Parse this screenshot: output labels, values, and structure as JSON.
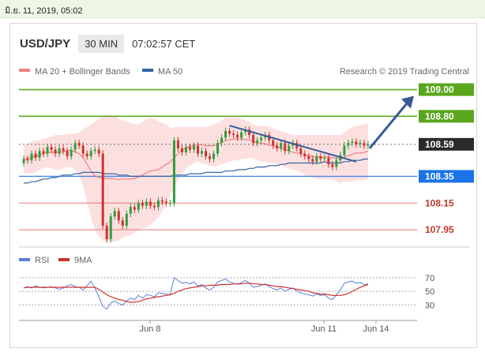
{
  "topbar": {
    "datetime": "มิ.ย. 11, 2019, 05:02"
  },
  "header": {
    "pair": "USD/JPY",
    "timeframe": "30 MIN",
    "time": "07:02:57 CET"
  },
  "legend": {
    "ma20": "MA 20 + Bollinger Bands",
    "ma50": "MA 50",
    "credit": "Research © 2019 Trading Central"
  },
  "colors": {
    "bull": "#2e9e3e",
    "bear": "#d0312d",
    "ma20": "#f08080",
    "ma50": "#3465a4",
    "band": "#fbd0d0",
    "target": "#5aa71e",
    "support": "#4a86e8",
    "levelred": "#e57373",
    "trend": "#3a5a96",
    "rsi": "#5b7fd8",
    "ma9": "#d0312d"
  },
  "chart_data": {
    "type": "candlestick",
    "ylim": [
      107.85,
      109.08
    ],
    "xticks": [
      "Jun 8",
      "Jun 11",
      "Jun 14"
    ],
    "closes": [
      108.48,
      108.47,
      108.52,
      108.49,
      108.54,
      108.52,
      108.57,
      108.55,
      108.52,
      108.56,
      108.54,
      108.5,
      108.55,
      108.6,
      108.58,
      108.52,
      108.5,
      108.54,
      108.55,
      108.52,
      107.98,
      107.88,
      108.05,
      108.09,
      108.02,
      107.98,
      108.07,
      108.12,
      108.1,
      108.15,
      108.13,
      108.16,
      108.13,
      108.12,
      108.17,
      108.16,
      108.15,
      108.15,
      108.62,
      108.56,
      108.53,
      108.57,
      108.55,
      108.58,
      108.52,
      108.54,
      108.5,
      108.48,
      108.52,
      108.6,
      108.64,
      108.69,
      108.67,
      108.66,
      108.64,
      108.68,
      108.7,
      108.66,
      108.6,
      108.62,
      108.64,
      108.66,
      108.62,
      108.58,
      108.56,
      108.6,
      108.54,
      108.58,
      108.6,
      108.56,
      108.52,
      108.5,
      108.48,
      108.46,
      108.5,
      108.48,
      108.49,
      108.44,
      108.42,
      108.47,
      108.51,
      108.58,
      108.6,
      108.61,
      108.59,
      108.6,
      108.58,
      108.59
    ],
    "bollinger_upper": [
      108.58,
      108.6,
      108.61,
      108.62,
      108.62,
      108.63,
      108.64,
      108.65,
      108.66,
      108.66,
      108.66,
      108.67,
      108.67,
      108.67,
      108.68,
      108.7,
      108.72,
      108.74,
      108.76,
      108.78,
      108.8,
      108.81,
      108.81,
      108.8,
      108.78,
      108.77,
      108.76,
      108.75,
      108.74,
      108.74,
      108.76,
      108.78,
      108.79,
      108.78,
      108.76,
      108.75,
      108.74,
      108.71,
      108.72,
      108.72,
      108.72,
      108.72,
      108.72,
      108.72,
      108.72,
      108.72,
      108.72,
      108.73,
      108.74,
      108.75,
      108.77,
      108.79,
      108.79,
      108.79,
      108.79,
      108.78,
      108.77,
      108.76,
      108.74,
      108.73,
      108.73,
      108.73,
      108.72,
      108.71,
      108.7,
      108.69,
      108.68,
      108.67,
      108.66,
      108.66,
      108.66,
      108.66,
      108.66,
      108.66,
      108.66,
      108.66,
      108.66,
      108.66,
      108.66,
      108.66,
      108.66,
      108.68,
      108.7,
      108.72,
      108.73,
      108.73,
      108.74,
      108.75
    ],
    "bollinger_lower": [
      108.38,
      108.37,
      108.37,
      108.38,
      108.4,
      108.41,
      108.42,
      108.41,
      108.4,
      108.4,
      108.41,
      108.42,
      108.42,
      108.4,
      108.36,
      108.28,
      108.16,
      108.04,
      107.95,
      107.9,
      107.87,
      107.86,
      107.86,
      107.86,
      107.87,
      107.89,
      107.9,
      107.91,
      107.93,
      107.95,
      107.96,
      107.97,
      107.99,
      108.01,
      108.04,
      108.09,
      108.14,
      108.2,
      108.26,
      108.32,
      108.37,
      108.41,
      108.43,
      108.45,
      108.46,
      108.45,
      108.44,
      108.43,
      108.42,
      108.43,
      108.44,
      108.45,
      108.46,
      108.47,
      108.47,
      108.48,
      108.48,
      108.49,
      108.48,
      108.47,
      108.46,
      108.46,
      108.45,
      108.45,
      108.44,
      108.43,
      108.42,
      108.41,
      108.4,
      108.39,
      108.38,
      108.36,
      108.35,
      108.34,
      108.33,
      108.33,
      108.33,
      108.33,
      108.32,
      108.31,
      108.3,
      108.31,
      108.31,
      108.31,
      108.32,
      108.32,
      108.32,
      108.33
    ],
    "ma50": [
      108.3,
      108.3,
      108.31,
      108.31,
      108.32,
      108.33,
      108.33,
      108.34,
      108.34,
      108.35,
      108.36,
      108.36,
      108.36,
      108.37,
      108.37,
      108.38,
      108.38,
      108.38,
      108.38,
      108.38,
      108.37,
      108.37,
      108.37,
      108.37,
      108.36,
      108.36,
      108.36,
      108.35,
      108.35,
      108.35,
      108.35,
      108.35,
      108.35,
      108.35,
      108.35,
      108.35,
      108.35,
      108.35,
      108.36,
      108.36,
      108.36,
      108.36,
      108.37,
      108.37,
      108.37,
      108.37,
      108.38,
      108.38,
      108.38,
      108.38,
      108.38,
      108.39,
      108.39,
      108.39,
      108.4,
      108.4,
      108.4,
      108.41,
      108.41,
      108.42,
      108.42,
      108.42,
      108.43,
      108.43,
      108.43,
      108.44,
      108.44,
      108.45,
      108.45,
      108.45,
      108.45,
      108.45,
      108.45,
      108.45,
      108.45,
      108.45,
      108.46,
      108.45,
      108.45,
      108.45,
      108.45,
      108.46,
      108.46,
      108.47,
      108.47,
      108.47,
      108.48,
      108.48
    ],
    "levels": [
      {
        "label": "109.00",
        "value": 109.0,
        "style": "target"
      },
      {
        "label": "108.80",
        "value": 108.8,
        "style": "target"
      },
      {
        "label": "108.59",
        "value": 108.59,
        "style": "current"
      },
      {
        "label": "108.35",
        "value": 108.35,
        "style": "support"
      },
      {
        "label": "108.15",
        "value": 108.15,
        "style": "plain"
      },
      {
        "label": "107.95",
        "value": 107.95,
        "style": "plain"
      }
    ],
    "rsi": {
      "ylim": [
        20,
        78
      ],
      "ticks": [
        "70",
        "50",
        "30"
      ],
      "legend": [
        "RSI",
        "9MA"
      ],
      "rsi_values": [
        55,
        57,
        55,
        58,
        56,
        55,
        56,
        57,
        55,
        53,
        55,
        58,
        60,
        57,
        56,
        52,
        58,
        65,
        55,
        42,
        28,
        24,
        33,
        36,
        32,
        30,
        36,
        40,
        38,
        44,
        40,
        45,
        44,
        42,
        48,
        47,
        46,
        45,
        70,
        66,
        62,
        63,
        61,
        64,
        58,
        60,
        55,
        52,
        56,
        64,
        66,
        68,
        64,
        62,
        60,
        63,
        66,
        62,
        56,
        57,
        59,
        61,
        57,
        54,
        52,
        55,
        50,
        53,
        55,
        50,
        48,
        46,
        45,
        43,
        46,
        44,
        45,
        40,
        38,
        45,
        52,
        62,
        64,
        65,
        62,
        63,
        60,
        61
      ],
      "ma9_values": [
        55,
        56,
        56,
        56,
        56,
        56,
        56,
        56,
        56,
        56,
        56,
        56,
        56,
        56,
        56,
        56,
        56,
        56,
        56,
        53,
        49,
        45,
        42,
        40,
        38,
        37,
        35,
        34,
        34,
        35,
        37,
        39,
        40,
        41,
        42,
        43,
        44,
        45,
        47,
        50,
        52,
        54,
        55,
        56,
        57,
        58,
        58,
        59,
        59,
        59,
        60,
        60,
        60,
        61,
        61,
        61,
        62,
        62,
        61,
        61,
        60,
        60,
        59,
        58,
        57,
        57,
        56,
        55,
        54,
        53,
        52,
        51,
        50,
        48,
        47,
        46,
        46,
        45,
        44,
        44,
        44,
        45,
        47,
        50,
        53,
        56,
        58,
        60
      ]
    }
  }
}
